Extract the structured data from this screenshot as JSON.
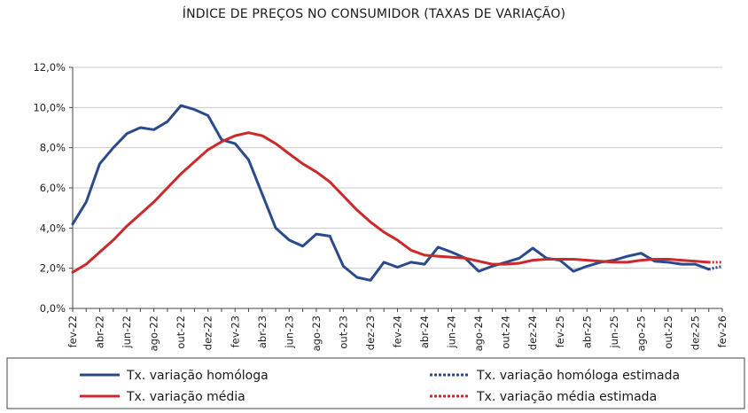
{
  "chart_data": {
    "type": "line",
    "title": "ÍNDICE DE PREÇOS NO CONSUMIDOR (TAXAS DE VARIAÇÃO)",
    "xlabel": "",
    "ylabel": "",
    "ylim": [
      0,
      12
    ],
    "y_ticks": [
      "0,0%",
      "2,0%",
      "4,0%",
      "6,0%",
      "8,0%",
      "10,0%",
      "12,0%"
    ],
    "x_tick_labels": [
      "fev-22",
      "abr-22",
      "jun-22",
      "ago-22",
      "out-22",
      "dez-22",
      "fev-23",
      "abr-23",
      "jun-23",
      "ago-23",
      "out-23",
      "dez-23",
      "fev-24",
      "abr-24",
      "jun-24",
      "ago-24",
      "out-24",
      "dez-24",
      "fev-25",
      "abr-25",
      "jun-25",
      "ago-25",
      "out-25",
      "dez-25",
      "fev-26"
    ],
    "x_months": [
      "fev-22",
      "mar-22",
      "abr-22",
      "mai-22",
      "jun-22",
      "jul-22",
      "ago-22",
      "set-22",
      "out-22",
      "nov-22",
      "dez-22",
      "jan-23",
      "fev-23",
      "mar-23",
      "abr-23",
      "mai-23",
      "jun-23",
      "jul-23",
      "ago-23",
      "set-23",
      "out-23",
      "nov-23",
      "dez-23",
      "jan-24",
      "fev-24",
      "mar-24",
      "abr-24",
      "mai-24",
      "jun-24",
      "jul-24",
      "ago-24",
      "set-24",
      "out-24",
      "nov-24",
      "dez-24",
      "jan-25",
      "fev-25",
      "mar-25",
      "abr-25",
      "mai-25",
      "jun-25",
      "jul-25",
      "ago-25",
      "set-25",
      "out-25",
      "nov-25",
      "dez-25",
      "jan-26",
      "fev-26"
    ],
    "series": [
      {
        "name": "Tx. variação homóloga",
        "color": "#2a4a8c",
        "style": "solid",
        "values": [
          4.2,
          5.3,
          7.2,
          8.0,
          8.7,
          9.0,
          8.9,
          9.3,
          10.1,
          9.9,
          9.6,
          8.4,
          8.2,
          7.4,
          5.7,
          4.0,
          3.4,
          3.1,
          3.7,
          3.6,
          2.1,
          1.55,
          1.4,
          2.3,
          2.05,
          2.3,
          2.2,
          3.05,
          2.8,
          2.5,
          1.85,
          2.1,
          2.3,
          2.5,
          3.0,
          2.5,
          2.4,
          1.85,
          2.1,
          2.3,
          2.4,
          2.6,
          2.75,
          2.35,
          2.3,
          2.2,
          2.2,
          1.95,
          null
        ]
      },
      {
        "name": "Tx. variação homóloga estimada",
        "color": "#2a4a8c",
        "style": "dotted",
        "values": [
          null,
          null,
          null,
          null,
          null,
          null,
          null,
          null,
          null,
          null,
          null,
          null,
          null,
          null,
          null,
          null,
          null,
          null,
          null,
          null,
          null,
          null,
          null,
          null,
          null,
          null,
          null,
          null,
          null,
          null,
          null,
          null,
          null,
          null,
          null,
          null,
          null,
          null,
          null,
          null,
          null,
          null,
          null,
          null,
          null,
          null,
          null,
          1.95,
          2.1
        ]
      },
      {
        "name": "Tx. variação média",
        "color": "#cc2a2a",
        "style": "solid",
        "values": [
          1.8,
          2.2,
          2.8,
          3.4,
          4.1,
          4.7,
          5.3,
          6.0,
          6.7,
          7.3,
          7.9,
          8.3,
          8.6,
          8.75,
          8.6,
          8.2,
          7.7,
          7.2,
          6.8,
          6.3,
          5.6,
          4.9,
          4.3,
          3.8,
          3.4,
          2.9,
          2.65,
          2.6,
          2.55,
          2.5,
          2.35,
          2.2,
          2.2,
          2.25,
          2.4,
          2.45,
          2.45,
          2.45,
          2.4,
          2.35,
          2.3,
          2.3,
          2.4,
          2.45,
          2.45,
          2.4,
          2.35,
          2.3,
          null
        ]
      },
      {
        "name": "Tx. variação média  estimada",
        "color": "#cc2a2a",
        "style": "dotted",
        "values": [
          null,
          null,
          null,
          null,
          null,
          null,
          null,
          null,
          null,
          null,
          null,
          null,
          null,
          null,
          null,
          null,
          null,
          null,
          null,
          null,
          null,
          null,
          null,
          null,
          null,
          null,
          null,
          null,
          null,
          null,
          null,
          null,
          null,
          null,
          null,
          null,
          null,
          null,
          null,
          null,
          null,
          null,
          null,
          null,
          null,
          null,
          null,
          2.3,
          2.3
        ]
      }
    ],
    "legend": [
      {
        "label": "Tx. variação homóloga",
        "color": "#2a4a8c",
        "style": "solid"
      },
      {
        "label": "Tx. variação homóloga estimada",
        "color": "#2a4a8c",
        "style": "dotted"
      },
      {
        "label": "Tx. variação média",
        "color": "#cc2a2a",
        "style": "solid"
      },
      {
        "label": "Tx. variação média  estimada",
        "color": "#cc2a2a",
        "style": "dotted"
      }
    ],
    "legend_position": "bottom",
    "grid": true
  }
}
